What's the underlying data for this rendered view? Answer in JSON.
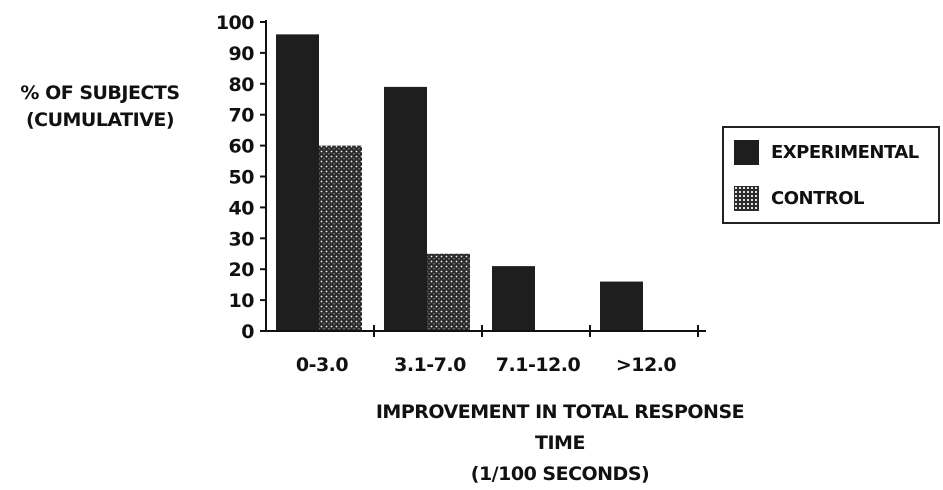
{
  "chart_data": {
    "type": "bar",
    "categories": [
      "0-3.0",
      "3.1-7.0",
      "7.1-12.0",
      ">12.0"
    ],
    "series": [
      {
        "name": "EXPERIMENTAL",
        "values": [
          96,
          79,
          21,
          16
        ]
      },
      {
        "name": "CONTROL",
        "values": [
          60,
          25,
          0,
          0
        ]
      }
    ],
    "ylabel_lines": [
      "% OF SUBJECTS",
      "(CUMULATIVE)"
    ],
    "xlabel_lines": [
      "IMPROVEMENT IN TOTAL RESPONSE TIME",
      "(1/100 SECONDS)"
    ],
    "ylim": [
      0,
      100
    ],
    "yticks": [
      0,
      10,
      20,
      30,
      40,
      50,
      60,
      70,
      80,
      90,
      100
    ],
    "grid": false,
    "legend_position": "right",
    "colors": {
      "experimental": "#1e1e1e",
      "control_base": "#2a2a2a",
      "control_dots": "#f4f4f4",
      "axis": "#111111"
    }
  }
}
